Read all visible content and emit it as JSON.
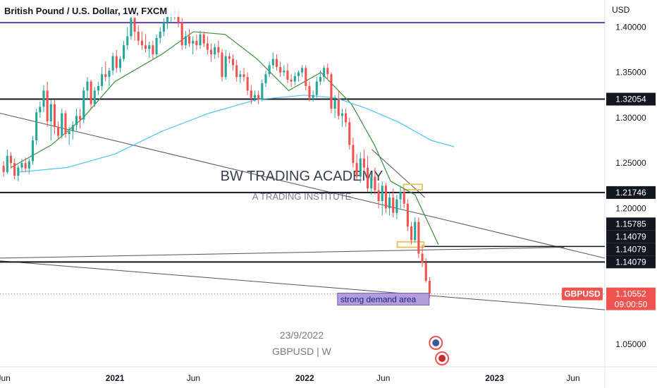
{
  "header": {
    "title": "British Pound / U.S. Dollar, 1W, FXCM"
  },
  "axis": {
    "currency": "USD"
  },
  "watermark": {
    "line1": "BW TRADING ACADEMY",
    "line2": "A TRADING INSTITUTE",
    "date": "23/9/2022",
    "symbol": "GBPUSD | W"
  },
  "annotation": {
    "label": "strong demand area"
  },
  "price_badge": {
    "symbol": "GBPUSD",
    "price": "1.10552",
    "countdown": "09:00:50"
  },
  "colors": {
    "up": "#26a69a",
    "down": "#ef5350",
    "ma_fast": "#388e3c",
    "ma_slow": "#4fc3f7",
    "purple_line": "#673ab7",
    "demand_fill": "#b39ddb",
    "zone_border": "#e9c46a"
  },
  "chart_data": {
    "type": "candlestick",
    "title": "British Pound / U.S. Dollar, 1W, FXCM",
    "ylabel": "USD",
    "ylim": [
      1.025,
      1.43
    ],
    "xlim": [
      "2020-05-25",
      "2023-08-01"
    ],
    "x_ticks": [
      {
        "date": "2020-06-01",
        "label": "Jun",
        "bold": false
      },
      {
        "date": "2021-01-01",
        "label": "2021",
        "bold": true
      },
      {
        "date": "2021-06-01",
        "label": "Jun",
        "bold": false
      },
      {
        "date": "2022-01-01",
        "label": "2022",
        "bold": true
      },
      {
        "date": "2022-06-01",
        "label": "Jun",
        "bold": false
      },
      {
        "date": "2023-01-01",
        "label": "2023",
        "bold": true
      },
      {
        "date": "2023-06-01",
        "label": "Jun",
        "bold": false
      }
    ],
    "y_ticks": [
      {
        "value": 1.4,
        "label": "1.40000"
      },
      {
        "value": 1.35,
        "label": "1.35000"
      },
      {
        "value": 1.3,
        "label": "1.30000"
      },
      {
        "value": 1.25,
        "label": "1.25000"
      },
      {
        "value": 1.2,
        "label": "1.20000"
      },
      {
        "value": 1.05,
        "label": "1.05000"
      }
    ],
    "levels": [
      {
        "value": 1.32054,
        "label": "1.32054"
      },
      {
        "value": 1.21746,
        "label": "1.21746"
      },
      {
        "value": 1.14079,
        "label": "1.14079"
      }
    ],
    "purple_level": 1.405,
    "stacked_labels": [
      "1.15785",
      "1.14079",
      "1.14079",
      "1.14079"
    ],
    "trendlines": [
      {
        "from": [
          "2020-05-25",
          1.305
        ],
        "to": [
          "2023-08-01",
          1.145
        ]
      },
      {
        "from": [
          "2020-05-25",
          1.142
        ],
        "to": [
          "2023-08-01",
          1.088
        ]
      },
      {
        "from": [
          "2020-05-25",
          1.145
        ],
        "to": [
          "2023-05-15",
          1.157
        ]
      },
      {
        "from": [
          "2022-05-10",
          1.265
        ],
        "to": [
          "2022-08-20",
          1.212
        ]
      }
    ],
    "zones": [
      {
        "from": "2022-07-10",
        "to": "2022-08-15",
        "high": 1.2265,
        "low": 1.2205
      },
      {
        "from": "2022-06-28",
        "to": "2022-08-18",
        "high": 1.163,
        "low": 1.157
      }
    ],
    "demand_label_anchor": {
      "date": "2022-03-05",
      "value": 1.097
    },
    "events": [
      "2022-09-10",
      "2022-09-22"
    ],
    "last_price": 1.10552,
    "series": [
      {
        "type": "candles",
        "weeks": [
          [
            1.247,
            1.252,
            1.235,
            1.24
          ],
          [
            1.24,
            1.265,
            1.238,
            1.258
          ],
          [
            1.258,
            1.262,
            1.244,
            1.25
          ],
          [
            1.25,
            1.255,
            1.232,
            1.236
          ],
          [
            1.236,
            1.248,
            1.23,
            1.245
          ],
          [
            1.245,
            1.254,
            1.24,
            1.25
          ],
          [
            1.25,
            1.256,
            1.24,
            1.244
          ],
          [
            1.244,
            1.255,
            1.238,
            1.252
          ],
          [
            1.252,
            1.28,
            1.248,
            1.275
          ],
          [
            1.275,
            1.31,
            1.27,
            1.306
          ],
          [
            1.306,
            1.318,
            1.3,
            1.312
          ],
          [
            1.312,
            1.336,
            1.306,
            1.33
          ],
          [
            1.33,
            1.34,
            1.29,
            1.296
          ],
          [
            1.296,
            1.32,
            1.275,
            1.315
          ],
          [
            1.315,
            1.32,
            1.282,
            1.29
          ],
          [
            1.29,
            1.296,
            1.276,
            1.28
          ],
          [
            1.28,
            1.31,
            1.277,
            1.305
          ],
          [
            1.305,
            1.308,
            1.278,
            1.282
          ],
          [
            1.282,
            1.29,
            1.27,
            1.285
          ],
          [
            1.285,
            1.296,
            1.276,
            1.292
          ],
          [
            1.292,
            1.31,
            1.286,
            1.302
          ],
          [
            1.302,
            1.31,
            1.288,
            1.298
          ],
          [
            1.298,
            1.334,
            1.294,
            1.33
          ],
          [
            1.33,
            1.345,
            1.32,
            1.34
          ],
          [
            1.34,
            1.342,
            1.31,
            1.315
          ],
          [
            1.315,
            1.334,
            1.312,
            1.33
          ],
          [
            1.33,
            1.34,
            1.325,
            1.335
          ],
          [
            1.335,
            1.356,
            1.33,
            1.348
          ],
          [
            1.348,
            1.362,
            1.34,
            1.345
          ],
          [
            1.345,
            1.355,
            1.335,
            1.352
          ],
          [
            1.352,
            1.372,
            1.347,
            1.368
          ],
          [
            1.368,
            1.375,
            1.35,
            1.355
          ],
          [
            1.355,
            1.368,
            1.35,
            1.365
          ],
          [
            1.365,
            1.385,
            1.362,
            1.38
          ],
          [
            1.38,
            1.4,
            1.375,
            1.39
          ],
          [
            1.39,
            1.42,
            1.386,
            1.41
          ],
          [
            1.41,
            1.418,
            1.385,
            1.395
          ],
          [
            1.395,
            1.402,
            1.38,
            1.385
          ],
          [
            1.385,
            1.395,
            1.375,
            1.38
          ],
          [
            1.38,
            1.392,
            1.372,
            1.376
          ],
          [
            1.376,
            1.384,
            1.366,
            1.38
          ],
          [
            1.38,
            1.385,
            1.365,
            1.37
          ],
          [
            1.37,
            1.392,
            1.366,
            1.388
          ],
          [
            1.388,
            1.4,
            1.382,
            1.395
          ],
          [
            1.395,
            1.41,
            1.39,
            1.405
          ],
          [
            1.405,
            1.418,
            1.398,
            1.412
          ],
          [
            1.412,
            1.422,
            1.405,
            1.415
          ],
          [
            1.415,
            1.424,
            1.408,
            1.418
          ],
          [
            1.418,
            1.422,
            1.4,
            1.405
          ],
          [
            1.405,
            1.41,
            1.375,
            1.38
          ],
          [
            1.38,
            1.396,
            1.376,
            1.39
          ],
          [
            1.39,
            1.398,
            1.378,
            1.382
          ],
          [
            1.382,
            1.39,
            1.37,
            1.385
          ],
          [
            1.385,
            1.392,
            1.375,
            1.38
          ],
          [
            1.38,
            1.396,
            1.376,
            1.392
          ],
          [
            1.392,
            1.395,
            1.378,
            1.382
          ],
          [
            1.382,
            1.39,
            1.37,
            1.375
          ],
          [
            1.375,
            1.382,
            1.362,
            1.37
          ],
          [
            1.37,
            1.382,
            1.365,
            1.378
          ],
          [
            1.378,
            1.385,
            1.366,
            1.372
          ],
          [
            1.372,
            1.376,
            1.34,
            1.345
          ],
          [
            1.345,
            1.375,
            1.342,
            1.368
          ],
          [
            1.368,
            1.372,
            1.36,
            1.365
          ],
          [
            1.365,
            1.37,
            1.352,
            1.358
          ],
          [
            1.358,
            1.364,
            1.34,
            1.345
          ],
          [
            1.345,
            1.352,
            1.338,
            1.348
          ],
          [
            1.348,
            1.355,
            1.34,
            1.345
          ],
          [
            1.345,
            1.35,
            1.325,
            1.33
          ],
          [
            1.33,
            1.336,
            1.315,
            1.322
          ],
          [
            1.322,
            1.33,
            1.318,
            1.325
          ],
          [
            1.325,
            1.33,
            1.315,
            1.32
          ],
          [
            1.32,
            1.342,
            1.318,
            1.338
          ],
          [
            1.338,
            1.352,
            1.334,
            1.348
          ],
          [
            1.348,
            1.362,
            1.345,
            1.358
          ],
          [
            1.358,
            1.372,
            1.354,
            1.365
          ],
          [
            1.365,
            1.37,
            1.352,
            1.356
          ],
          [
            1.356,
            1.362,
            1.345,
            1.35
          ],
          [
            1.35,
            1.358,
            1.346,
            1.352
          ],
          [
            1.352,
            1.36,
            1.338,
            1.342
          ],
          [
            1.342,
            1.348,
            1.334,
            1.34
          ],
          [
            1.34,
            1.35,
            1.336,
            1.346
          ],
          [
            1.346,
            1.352,
            1.34,
            1.35
          ],
          [
            1.35,
            1.358,
            1.345,
            1.355
          ],
          [
            1.355,
            1.358,
            1.33,
            1.335
          ],
          [
            1.335,
            1.34,
            1.318,
            1.322
          ],
          [
            1.322,
            1.33,
            1.318,
            1.325
          ],
          [
            1.325,
            1.345,
            1.322,
            1.34
          ],
          [
            1.34,
            1.352,
            1.336,
            1.345
          ],
          [
            1.345,
            1.358,
            1.34,
            1.355
          ],
          [
            1.355,
            1.36,
            1.342,
            1.348
          ],
          [
            1.348,
            1.35,
            1.305,
            1.31
          ],
          [
            1.31,
            1.325,
            1.3,
            1.32
          ],
          [
            1.32,
            1.33,
            1.298,
            1.302
          ],
          [
            1.302,
            1.31,
            1.29,
            1.305
          ],
          [
            1.305,
            1.31,
            1.29,
            1.295
          ],
          [
            1.295,
            1.3,
            1.265,
            1.27
          ],
          [
            1.27,
            1.278,
            1.245,
            1.25
          ],
          [
            1.25,
            1.26,
            1.232,
            1.235
          ],
          [
            1.235,
            1.262,
            1.228,
            1.255
          ],
          [
            1.255,
            1.265,
            1.238,
            1.245
          ],
          [
            1.245,
            1.258,
            1.218,
            1.222
          ],
          [
            1.222,
            1.24,
            1.215,
            1.235
          ],
          [
            1.235,
            1.245,
            1.215,
            1.22
          ],
          [
            1.22,
            1.228,
            1.2,
            1.208
          ],
          [
            1.208,
            1.23,
            1.192,
            1.225
          ],
          [
            1.225,
            1.228,
            1.195,
            1.2
          ],
          [
            1.2,
            1.218,
            1.192,
            1.212
          ],
          [
            1.212,
            1.222,
            1.19,
            1.195
          ],
          [
            1.195,
            1.215,
            1.188,
            1.21
          ],
          [
            1.21,
            1.225,
            1.2,
            1.218
          ],
          [
            1.218,
            1.222,
            1.2,
            1.205
          ],
          [
            1.205,
            1.21,
            1.175,
            1.18
          ],
          [
            1.18,
            1.185,
            1.16,
            1.165
          ],
          [
            1.165,
            1.19,
            1.162,
            1.185
          ],
          [
            1.185,
            1.19,
            1.145,
            1.15
          ],
          [
            1.15,
            1.16,
            1.135,
            1.14
          ],
          [
            1.14,
            1.145,
            1.118,
            1.12
          ],
          [
            1.12,
            1.124,
            1.101,
            1.106
          ]
        ]
      },
      {
        "name": "",
        "type": "moving_average_fast",
        "x": [
          "2020-06-15",
          "2020-09-01",
          "2020-11-01",
          "2021-01-01",
          "2021-04-01",
          "2021-06-01",
          "2021-08-01",
          "2021-10-01",
          "2021-12-01",
          "2022-02-01",
          "2022-04-01",
          "2022-05-15",
          "2022-06-15",
          "2022-08-01",
          "2022-09-15"
        ],
        "y": [
          1.245,
          1.27,
          1.3,
          1.34,
          1.37,
          1.395,
          1.392,
          1.365,
          1.33,
          1.35,
          1.315,
          1.27,
          1.23,
          1.215,
          1.16
        ]
      },
      {
        "name": "",
        "type": "moving_average_slow",
        "x": [
          "2020-07-01",
          "2020-10-01",
          "2021-01-01",
          "2021-04-01",
          "2021-07-01",
          "2021-10-01",
          "2022-01-01",
          "2022-03-01",
          "2022-05-01",
          "2022-07-01",
          "2022-09-01",
          "2022-10-15"
        ],
        "y": [
          1.24,
          1.245,
          1.26,
          1.285,
          1.305,
          1.32,
          1.325,
          1.322,
          1.31,
          1.295,
          1.275,
          1.268
        ]
      }
    ]
  }
}
